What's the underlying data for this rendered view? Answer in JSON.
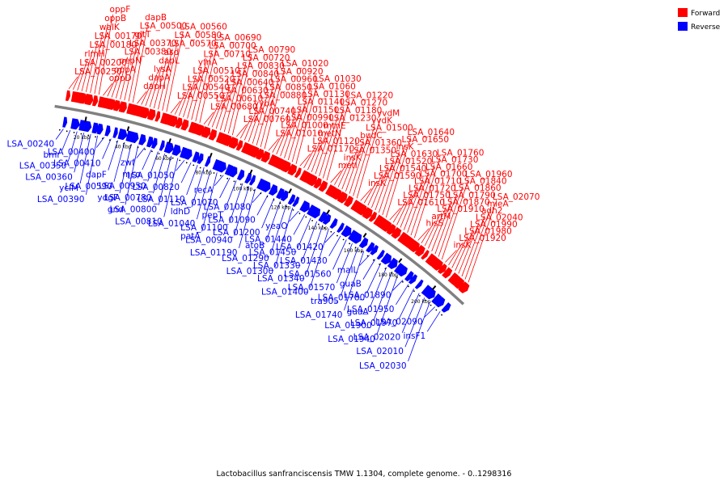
{
  "caption": "Lactobacillus sanfranciscensis TMW 1.1304, complete genome. - 0..1298316",
  "legend": [
    {
      "label": "Forward",
      "color": "#ff0000"
    },
    {
      "label": "Reverse",
      "color": "#0000ff"
    }
  ],
  "colors": {
    "forward": "#ff0000",
    "reverse": "#0000ff",
    "backbone": "#808080"
  },
  "scale_ticks": [
    "20 kbp",
    "40 kbp",
    "60 kbp",
    "80 kbp",
    "100 kbp",
    "120 kbp",
    "140 kbp",
    "160 kbp",
    "180 kbp",
    "200 kbp"
  ],
  "forward_genes": [
    "LSA_00250",
    "LSA_00200",
    "rlmH",
    "LSA_00180",
    "LSA_00170",
    "walK",
    "oppB",
    "oppF",
    "oppD",
    "oppA",
    "pepN",
    "LSA_00380",
    "LSA_00370",
    "gltT",
    "LSA_00500",
    "dapB",
    "dapH",
    "dapA",
    "lysA",
    "dapL",
    "asd",
    "LSA_00570",
    "LSA_00580",
    "LSA_00560",
    "LSA_00550",
    "LSA_00540",
    "LSA_00520",
    "LSA_00510",
    "yfnA",
    "LSA_00710",
    "LSA_00700",
    "LSA_00690",
    "LSA_00680",
    "LSA_00610",
    "LSA_00630",
    "LSA_00640",
    "LSA_00840",
    "LSA_00830",
    "LSA_00720",
    "LSA_00790",
    "LSA_00760",
    "LSA_00740",
    "yybA",
    "LSA_00880",
    "LSA_00850",
    "LSA_00960",
    "LSA_00920",
    "LSA_01020",
    "LSA_01010",
    "LSA_01000",
    "LSA_00990",
    "LSA_01150",
    "LSA_01140",
    "LSA_01130",
    "LSA_01060",
    "LSA_01030",
    "LSA_01170",
    "LSA_01120",
    "metN",
    "mtnE",
    "LSA_01230",
    "LSA_01180",
    "LSA_01270",
    "LSA_01220",
    "metI",
    "insK",
    "LSA_01350",
    "LSA_01360",
    "budC",
    "LSA_01500",
    "yvdK",
    "yvdM",
    "insK",
    "LSA_01590",
    "LSA_01540",
    "LSA_01520",
    "LSA_01630",
    "insK",
    "LSA_01650",
    "LSA_01640",
    "LSA_01610",
    "LSA_01750",
    "LSA_01720",
    "LSA_01710",
    "LSA_01700",
    "LSA_01660",
    "LSA_01730",
    "LSA_01760",
    "hisS",
    "artM",
    "LSA_01910",
    "LSA_01870",
    "LSA_01790",
    "LSA_01860",
    "LSA_01840",
    "LSA_01960",
    "insK",
    "LSA_01920",
    "LSA_01980",
    "LSA_01990",
    "LSA_02040",
    "adh2",
    "mleA",
    "LSA_02070"
  ],
  "reverse_genes": [
    "LSA_00240",
    "bmr",
    "LSA_00350",
    "LSA_00360",
    "yclM",
    "LSA_00390",
    "LSA_00400",
    "LSA_00410",
    "dapF",
    "LSA_00590",
    "ydgF",
    "gnd",
    "zwf",
    "mco",
    "LSA_00950",
    "LSA_00780",
    "LSA_00800",
    "LSA_00810",
    "LSA_01050",
    "LSA_00820",
    "LSA_01110",
    "ldhD",
    "LSA_01040",
    "patA",
    "recA",
    "LSA_01070",
    "pepT",
    "LSA_01100",
    "LSA_00940",
    "LSA_01190",
    "LSA_01080",
    "LSA_01090",
    "LSA_01200",
    "atoB",
    "LSA_01290",
    "LSA_01300",
    "yeaO",
    "LSA_01440",
    "LSA_01450",
    "LSA_01330",
    "LSA_01340",
    "LSA_01400",
    "LSA_01420",
    "LSA_01430",
    "LSA_01560",
    "LSA_01570",
    "tra905",
    "LSA_01740",
    "malL",
    "guaB",
    "LSA_01780",
    "guaA",
    "LSA_01900",
    "LSA_01940",
    "LSA_01890",
    "LSA_01950",
    "LSA_01970",
    "LSA_02020",
    "LSA_02010",
    "LSA_02030",
    "LSA_02090",
    "insF1"
  ]
}
